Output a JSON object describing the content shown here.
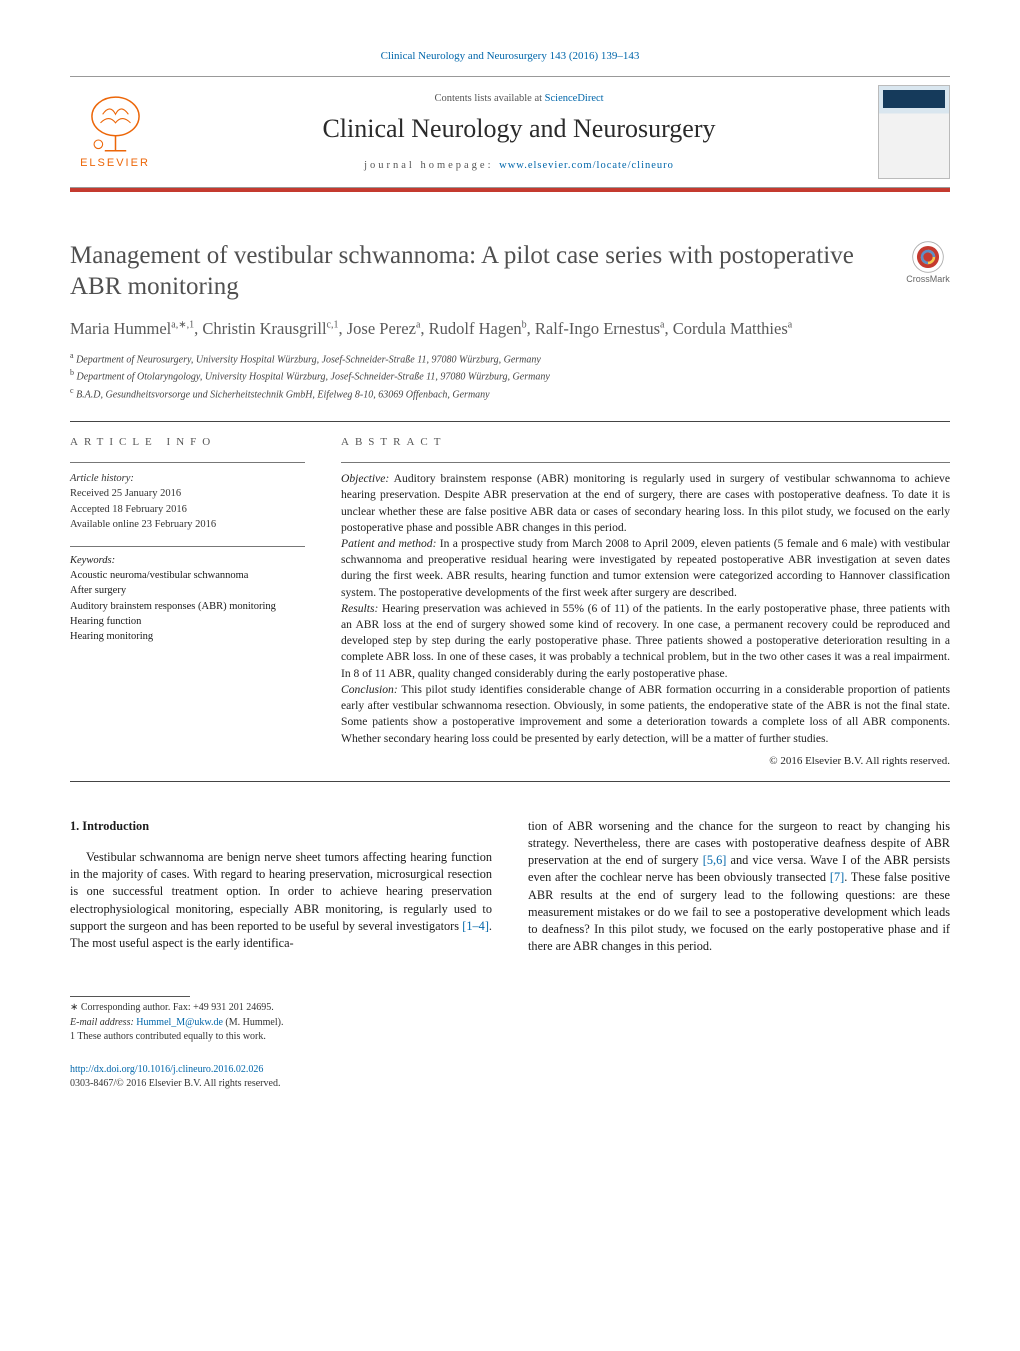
{
  "journal_ref": "Clinical Neurology and Neurosurgery 143 (2016) 139–143",
  "header": {
    "contents_prefix": "Contents lists available at ",
    "contents_link": "ScienceDirect",
    "journal_title": "Clinical Neurology and Neurosurgery",
    "homepage_prefix": "journal homepage: ",
    "homepage_link": "www.elsevier.com/locate/clineuro",
    "publisher": "ELSEVIER"
  },
  "article": {
    "title": "Management of vestibular schwannoma: A pilot case series with postoperative ABR monitoring",
    "crossmark_label": "CrossMark",
    "authors_html": "Maria Hummel<sup>a,∗,1</sup>, Christin Krausgrill<sup>c,1</sup>, Jose Perez<sup>a</sup>, Rudolf Hagen<sup>b</sup>, Ralf-Ingo Ernestus<sup>a</sup>, Cordula Matthies<sup>a</sup>",
    "affiliations": [
      "a Department of Neurosurgery, University Hospital Würzburg, Josef-Schneider-Straße 11, 97080 Würzburg, Germany",
      "b Department of Otolaryngology, University Hospital Würzburg, Josef-Schneider-Straße 11, 97080 Würzburg, Germany",
      "c B.A.D, Gesundheitsvorsorge und Sicherheitstechnik GmbH, Eifelweg 8-10, 63069 Offenbach, Germany"
    ]
  },
  "info": {
    "head": "article info",
    "history_label": "Article history:",
    "received": "Received 25 January 2016",
    "accepted": "Accepted 18 February 2016",
    "online": "Available online 23 February 2016",
    "keywords_label": "Keywords:",
    "keywords": [
      "Acoustic neuroma/vestibular schwannoma",
      "After surgery",
      "Auditory brainstem responses (ABR) monitoring",
      "Hearing function",
      "Hearing monitoring"
    ]
  },
  "abstract": {
    "head": "abstract",
    "objective_label": "Objective:",
    "objective": "Auditory brainstem response (ABR) monitoring is regularly used in surgery of vestibular schwannoma to achieve hearing preservation. Despite ABR preservation at the end of surgery, there are cases with postoperative deafness. To date it is unclear whether these are false positive ABR data or cases of secondary hearing loss. In this pilot study, we focused on the early postoperative phase and possible ABR changes in this period.",
    "method_label": "Patient and method:",
    "method": "In a prospective study from March 2008 to April 2009, eleven patients (5 female and 6 male) with vestibular schwannoma and preoperative residual hearing were investigated by repeated postoperative ABR investigation at seven dates during the first week. ABR results, hearing function and tumor extension were categorized according to Hannover classification system. The postoperative developments of the first week after surgery are described.",
    "results_label": "Results:",
    "results": "Hearing preservation was achieved in 55% (6 of 11) of the patients. In the early postoperative phase, three patients with an ABR loss at the end of surgery showed some kind of recovery. In one case, a permanent recovery could be reproduced and developed step by step during the early postoperative phase. Three patients showed a postoperative deterioration resulting in a complete ABR loss. In one of these cases, it was probably a technical problem, but in the two other cases it was a real impairment. In 8 of 11 ABR, quality changed considerably during the early postoperative phase.",
    "conclusion_label": "Conclusion:",
    "conclusion": "This pilot study identifies considerable change of ABR formation occurring in a considerable proportion of patients early after vestibular schwannoma resection. Obviously, in some patients, the endoperative state of the ABR is not the final state. Some patients show a postoperative improvement and some a deterioration towards a complete loss of all ABR components. Whether secondary hearing loss could be presented by early detection, will be a matter of further studies.",
    "copyright": "© 2016 Elsevier B.V. All rights reserved."
  },
  "body": {
    "intro_head": "1. Introduction",
    "col1": "Vestibular schwannoma are benign nerve sheet tumors affecting hearing function in the majority of cases. With regard to hearing preservation, microsurgical resection is one successful treatment option. In order to achieve hearing preservation electrophysiological monitoring, especially ABR monitoring, is regularly used to support the surgeon and has been reported to be useful by several investigators ",
    "col1_cite": "[1–4]",
    "col1_tail": ". The most useful aspect is the early identifica-",
    "col2_a": "tion of ABR worsening and the chance for the surgeon to react by changing his strategy. Nevertheless, there are cases with postoperative deafness despite of ABR preservation at the end of surgery ",
    "col2_cite1": "[5,6]",
    "col2_b": " and vice versa. Wave I of the ABR persists even after the cochlear nerve has been obviously transected ",
    "col2_cite2": "[7]",
    "col2_c": ". These false positive ABR results at the end of surgery lead to the following questions: are these measurement mistakes or do we fail to see a postoperative development which leads to deafness? In this pilot study, we focused on the early postoperative phase and if there are ABR changes in this period."
  },
  "footnotes": {
    "corr": "∗ Corresponding author. Fax: +49 931 201 24695.",
    "email_label": "E-mail address: ",
    "email": "Hummel_M@ukw.de",
    "email_who": " (M. Hummel).",
    "equal": "1 These authors contributed equally to this work."
  },
  "doi": {
    "link": "http://dx.doi.org/10.1016/j.clineuro.2016.02.026",
    "issn_line": "0303-8467/© 2016 Elsevier B.V. All rights reserved."
  },
  "colors": {
    "accent_red": "#c43a2f",
    "link_blue": "#0066aa",
    "elsevier_orange": "#ec6608",
    "text_gray": "#505050"
  }
}
